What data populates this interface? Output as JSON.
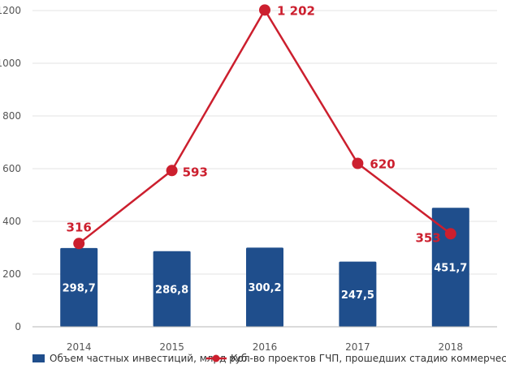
{
  "chart_data": {
    "type": "bar",
    "categories": [
      "2014",
      "2015",
      "2016",
      "2017",
      "2018"
    ],
    "ylim": [
      0,
      1200
    ],
    "yticks": [
      "0",
      "200",
      "400",
      "600",
      "800",
      "1000",
      "1200"
    ],
    "grid": true,
    "legend_position": "bottom",
    "series": [
      {
        "name": "Объем частных инвестиций, млрд руб.",
        "type": "bar",
        "color": "#1f4e8c",
        "values": [
          298.7,
          286.8,
          300.2,
          247.5,
          451.7
        ],
        "labels": [
          "298,7",
          "286,8",
          "300,2",
          "247,5",
          "451,7"
        ]
      },
      {
        "name": "Кол-во проектов ГЧП, прошедших стадию коммерческого закрытия",
        "type": "line",
        "color": "#cc1f2e",
        "values": [
          316,
          593,
          1202,
          620,
          353
        ],
        "labels": [
          "316",
          "593",
          "1 202",
          "620",
          "353"
        ]
      }
    ]
  }
}
